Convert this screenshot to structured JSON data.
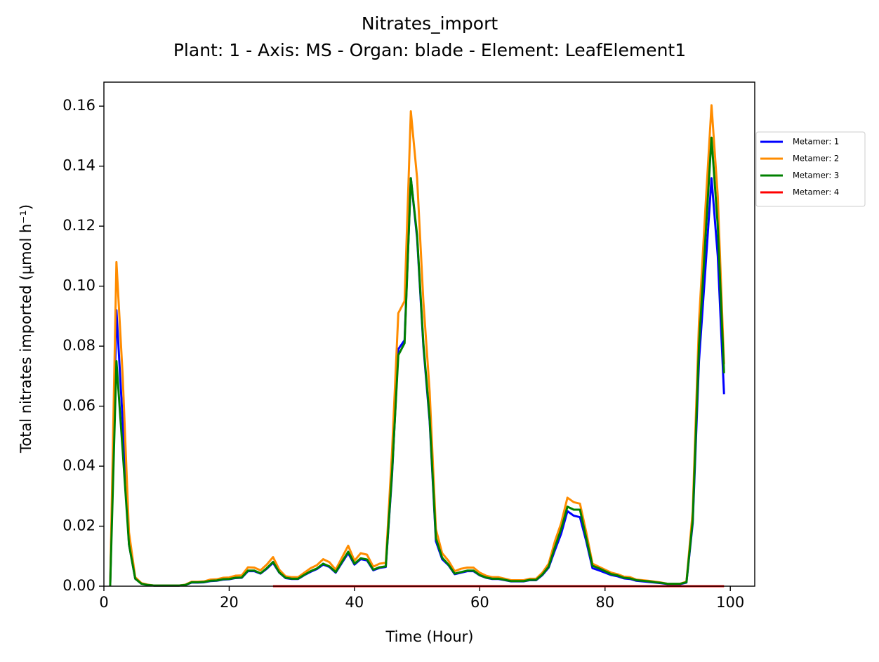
{
  "chart_data": {
    "type": "line",
    "title": "Nitrates_import",
    "subtitle": "Plant: 1 - Axis: MS - Organ: blade - Element: LeafElement1",
    "xlabel": "Time (Hour)",
    "ylabel": "Total nitrates imported (μmol h⁻¹)",
    "x": [
      1,
      2,
      3,
      4,
      5,
      6,
      7,
      8,
      9,
      10,
      11,
      12,
      13,
      14,
      15,
      16,
      17,
      18,
      19,
      20,
      21,
      22,
      23,
      24,
      25,
      26,
      27,
      28,
      29,
      30,
      31,
      32,
      33,
      34,
      35,
      36,
      37,
      38,
      39,
      40,
      41,
      42,
      43,
      44,
      45,
      46,
      47,
      48,
      49,
      50,
      51,
      52,
      53,
      54,
      55,
      56,
      57,
      58,
      59,
      60,
      61,
      62,
      63,
      64,
      65,
      66,
      67,
      68,
      69,
      70,
      71,
      72,
      73,
      74,
      75,
      76,
      77,
      78,
      79,
      80,
      81,
      82,
      83,
      84,
      85,
      86,
      87,
      88,
      89,
      90,
      91,
      92,
      93,
      94,
      95,
      96,
      97,
      98,
      99
    ],
    "series": [
      {
        "name": "Metamer: 1",
        "color": "#0000ff",
        "values": [
          0,
          0.092,
          0.055,
          0.014,
          0.0025,
          0.0008,
          0.0004,
          0.0002,
          0.0002,
          0.0002,
          0.0002,
          0.0002,
          0.0004,
          0.0012,
          0.0012,
          0.0013,
          0.0017,
          0.0018,
          0.0022,
          0.0023,
          0.0027,
          0.0028,
          0.005,
          0.005,
          0.0042,
          0.0058,
          0.0078,
          0.0045,
          0.0027,
          0.0024,
          0.0024,
          0.0037,
          0.0048,
          0.0057,
          0.0072,
          0.0064,
          0.0045,
          0.0078,
          0.011,
          0.0072,
          0.009,
          0.0086,
          0.0053,
          0.0061,
          0.0064,
          0.037,
          0.079,
          0.082,
          0.136,
          0.116,
          0.08,
          0.055,
          0.015,
          0.009,
          0.007,
          0.004,
          0.0045,
          0.005,
          0.005,
          0.0036,
          0.0028,
          0.0024,
          0.0024,
          0.002,
          0.0016,
          0.0016,
          0.0016,
          0.002,
          0.002,
          0.0037,
          0.0062,
          0.012,
          0.0175,
          0.025,
          0.0235,
          0.023,
          0.015,
          0.006,
          0.0053,
          0.0045,
          0.0037,
          0.0033,
          0.0026,
          0.0024,
          0.0018,
          0.0016,
          0.0014,
          0.0012,
          0.001,
          0.0007,
          0.0007,
          0.0007,
          0.0012,
          0.021,
          0.075,
          0.105,
          0.136,
          0.11,
          0.064
        ]
      },
      {
        "name": "Metamer: 2",
        "color": "#ff8c00",
        "values": [
          0,
          0.108,
          0.07,
          0.018,
          0.003,
          0.001,
          0.0005,
          0.0002,
          0.0002,
          0.0002,
          0.0002,
          0.0002,
          0.0005,
          0.0015,
          0.0015,
          0.0016,
          0.0022,
          0.0023,
          0.0028,
          0.0029,
          0.0035,
          0.0036,
          0.0063,
          0.0062,
          0.0053,
          0.0072,
          0.0097,
          0.0055,
          0.0033,
          0.003,
          0.003,
          0.0045,
          0.006,
          0.007,
          0.009,
          0.008,
          0.0055,
          0.0095,
          0.0135,
          0.0085,
          0.011,
          0.0105,
          0.0065,
          0.0075,
          0.0078,
          0.045,
          0.091,
          0.095,
          0.1583,
          0.136,
          0.095,
          0.065,
          0.019,
          0.011,
          0.0085,
          0.005,
          0.0058,
          0.0062,
          0.0062,
          0.0045,
          0.0035,
          0.003,
          0.003,
          0.0025,
          0.002,
          0.002,
          0.002,
          0.0025,
          0.0025,
          0.0045,
          0.0075,
          0.015,
          0.021,
          0.0295,
          0.028,
          0.0275,
          0.018,
          0.0075,
          0.0065,
          0.0055,
          0.0045,
          0.004,
          0.0032,
          0.003,
          0.0022,
          0.002,
          0.0018,
          0.0015,
          0.0012,
          0.0008,
          0.0008,
          0.0008,
          0.0015,
          0.025,
          0.088,
          0.125,
          0.1603,
          0.13,
          0.074
        ]
      },
      {
        "name": "Metamer: 3",
        "color": "#008000",
        "values": [
          0,
          0.075,
          0.045,
          0.014,
          0.0025,
          0.0008,
          0.0004,
          0.0002,
          0.0002,
          0.0002,
          0.0002,
          0.0002,
          0.0004,
          0.0013,
          0.0013,
          0.0014,
          0.0018,
          0.0019,
          0.0023,
          0.0024,
          0.0028,
          0.0029,
          0.0052,
          0.0052,
          0.0043,
          0.006,
          0.0081,
          0.0046,
          0.0028,
          0.0025,
          0.0025,
          0.0038,
          0.005,
          0.0059,
          0.0075,
          0.0066,
          0.0047,
          0.0081,
          0.0115,
          0.0075,
          0.0093,
          0.0089,
          0.0055,
          0.0063,
          0.0066,
          0.038,
          0.077,
          0.081,
          0.136,
          0.117,
          0.081,
          0.056,
          0.016,
          0.0095,
          0.0072,
          0.0042,
          0.0047,
          0.0052,
          0.0052,
          0.0037,
          0.0029,
          0.0025,
          0.0025,
          0.0021,
          0.0017,
          0.0017,
          0.0017,
          0.0021,
          0.0021,
          0.0039,
          0.0065,
          0.013,
          0.019,
          0.0265,
          0.0255,
          0.0255,
          0.016,
          0.0068,
          0.006,
          0.005,
          0.004,
          0.0036,
          0.0028,
          0.0026,
          0.002,
          0.0018,
          0.0016,
          0.0013,
          0.0011,
          0.0008,
          0.0008,
          0.0008,
          0.0013,
          0.022,
          0.08,
          0.115,
          0.1495,
          0.12,
          0.071
        ]
      },
      {
        "name": "Metamer: 4",
        "color": "#ff0000",
        "values": [
          null,
          null,
          null,
          null,
          null,
          null,
          null,
          null,
          null,
          null,
          null,
          null,
          null,
          null,
          null,
          null,
          null,
          null,
          null,
          null,
          null,
          null,
          null,
          null,
          null,
          null,
          0,
          0,
          0,
          0,
          0,
          0,
          0,
          0,
          0,
          0,
          0,
          0,
          0,
          0,
          0,
          0,
          0,
          0,
          0,
          0,
          0,
          0,
          0,
          0,
          0,
          0,
          0,
          0,
          0,
          0,
          0,
          0,
          0,
          0,
          0,
          0,
          0,
          0,
          0,
          0,
          0,
          0,
          0,
          0,
          0,
          0,
          0,
          0,
          0,
          0,
          0,
          0,
          0,
          0,
          0,
          0,
          0,
          0,
          0,
          0,
          0,
          0,
          0,
          0,
          0,
          0,
          0,
          0,
          0,
          0,
          0,
          0,
          0
        ]
      }
    ],
    "xlim": [
      0,
      103.9
    ],
    "ylim": [
      0,
      0.168
    ],
    "xticks": [
      0,
      20,
      40,
      60,
      80,
      100
    ],
    "yticks": [
      {
        "value": 0,
        "label": "0.00"
      },
      {
        "value": 0.02,
        "label": "0.02"
      },
      {
        "value": 0.04,
        "label": "0.04"
      },
      {
        "value": 0.06,
        "label": "0.06"
      },
      {
        "value": 0.08,
        "label": "0.08"
      },
      {
        "value": 0.1,
        "label": "0.10"
      },
      {
        "value": 0.12,
        "label": "0.12"
      },
      {
        "value": 0.14,
        "label": "0.14"
      },
      {
        "value": 0.16,
        "label": "0.16"
      }
    ],
    "legend": "outside-upper-right",
    "grid": false
  }
}
